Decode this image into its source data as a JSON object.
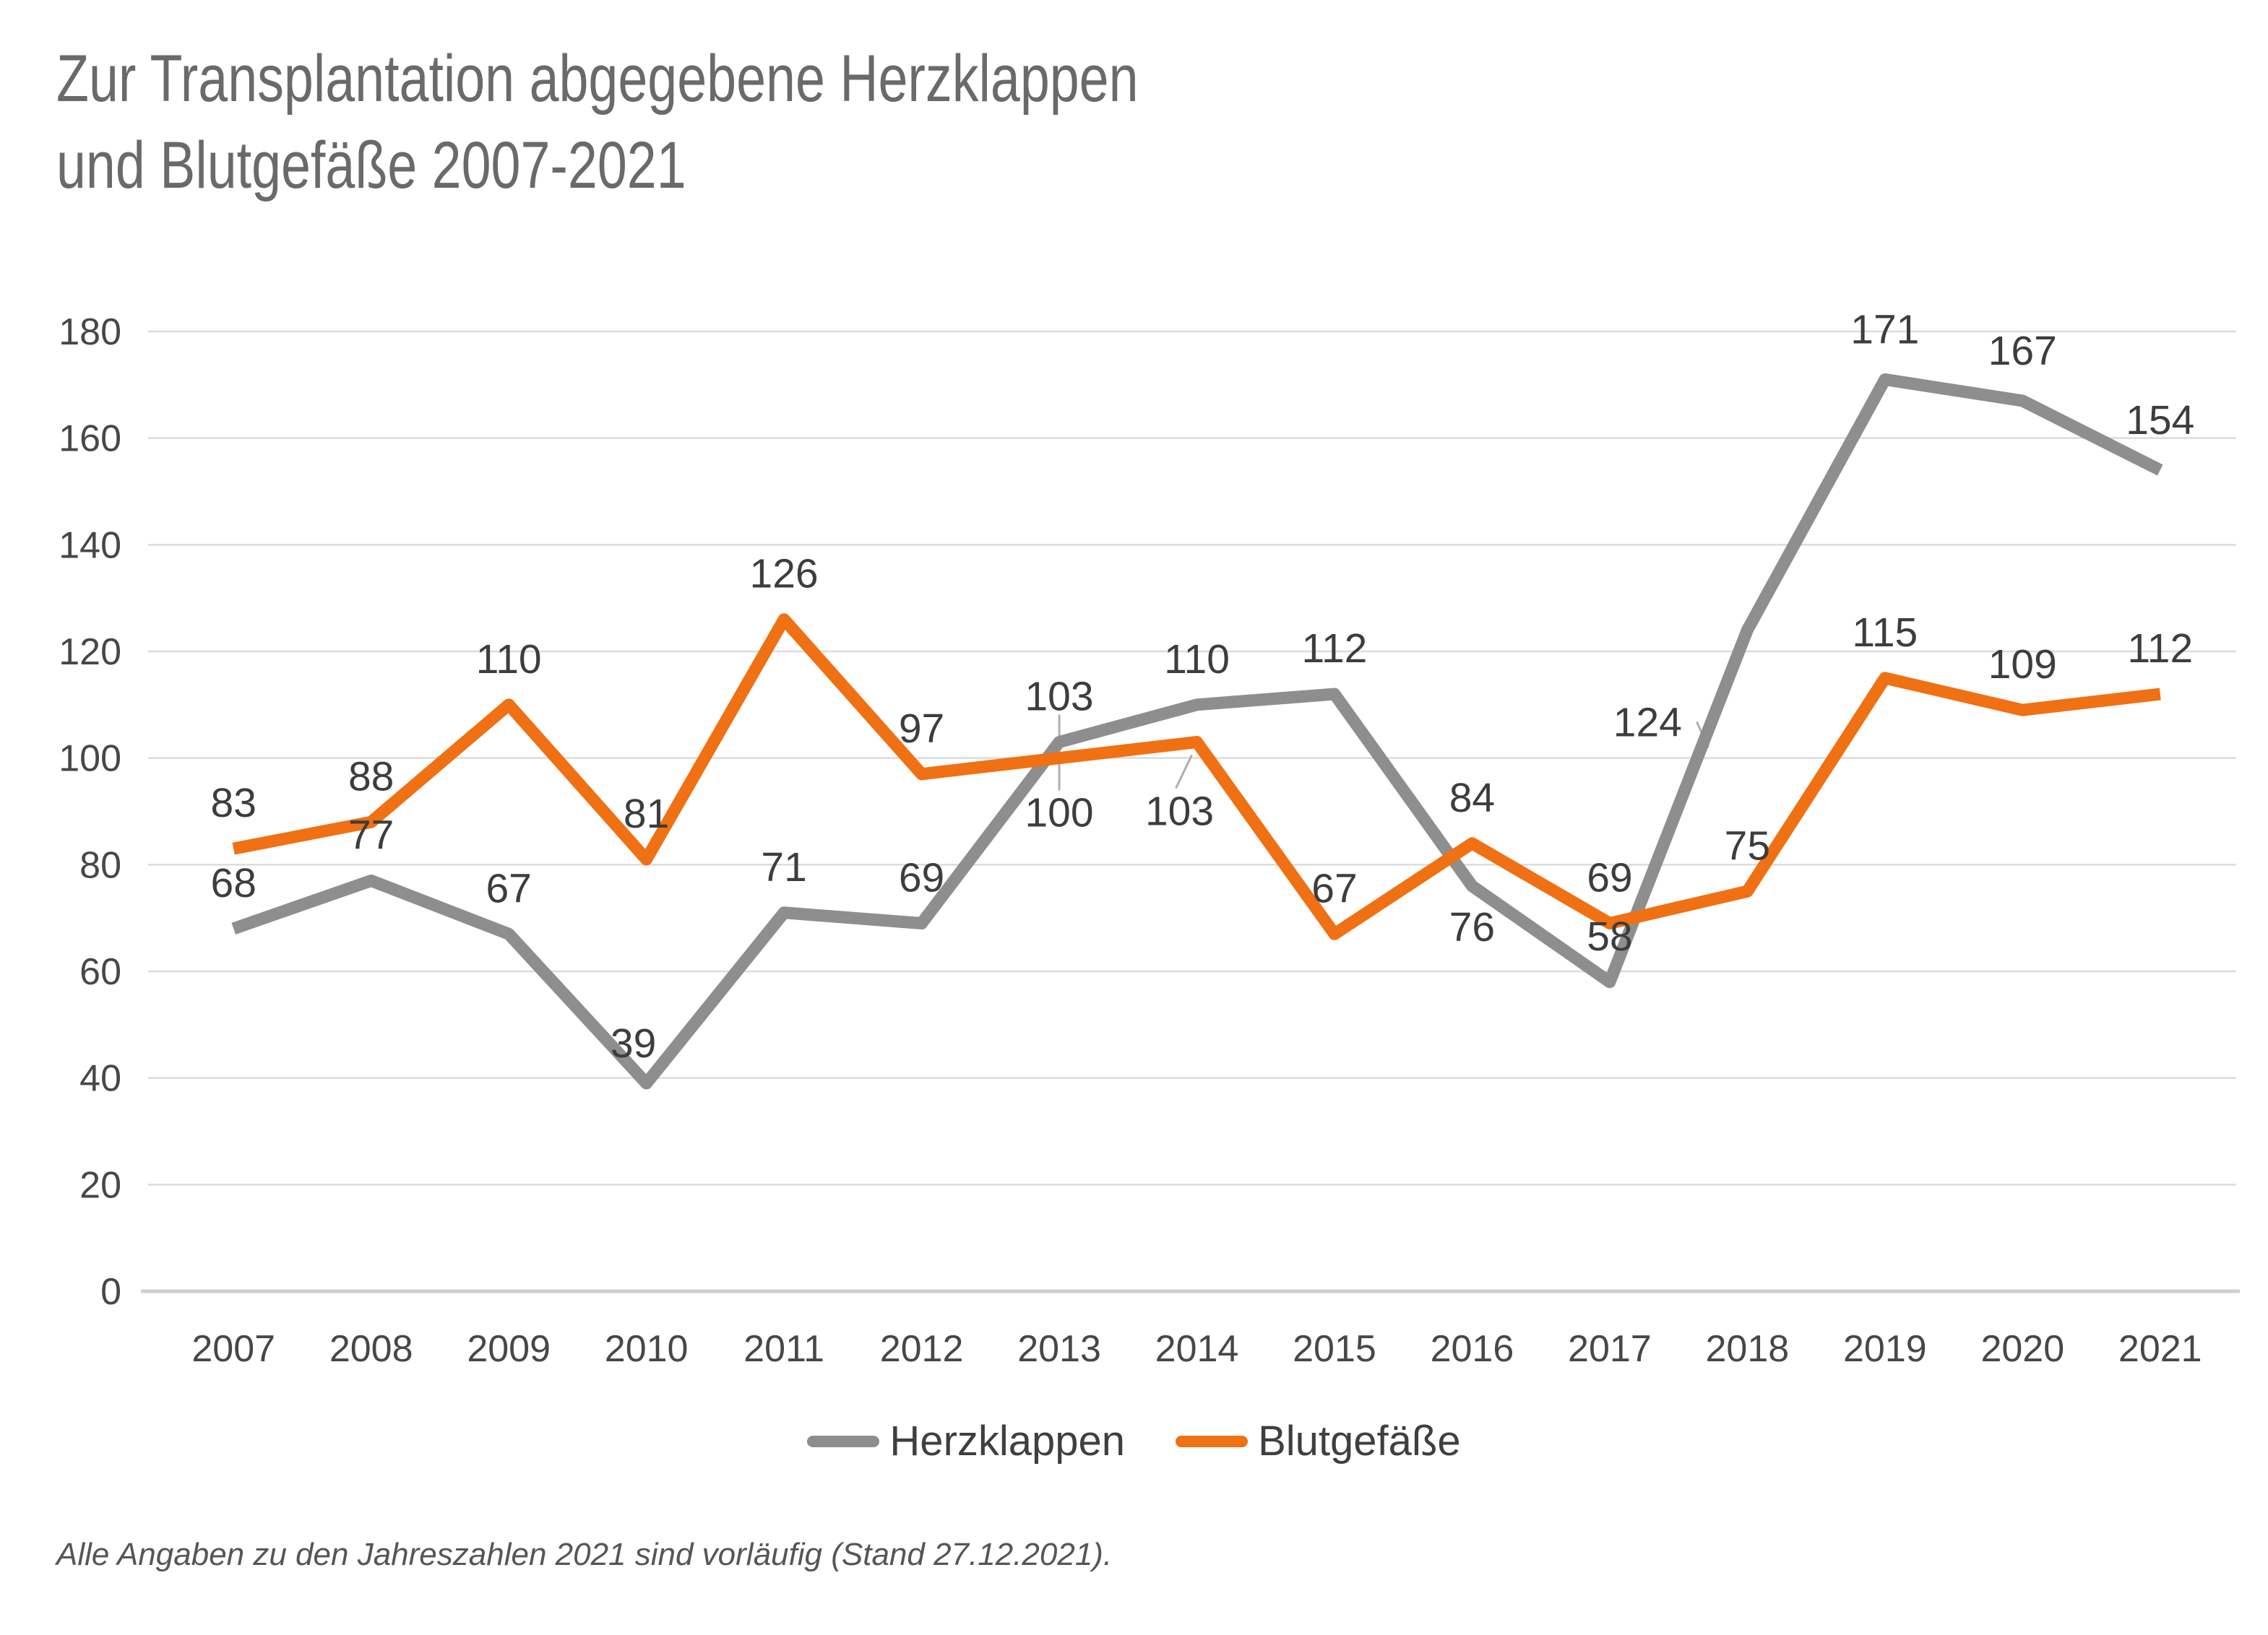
{
  "title": {
    "line1": "Zur Transplantation abgegebene Herzklappen",
    "line2": "und Blutgefäße 2007-2021"
  },
  "footnote": "Alle Angaben zu den Jahreszahlen 2021 sind vorläufig (Stand 27.12.2021).",
  "legend": {
    "items": [
      {
        "label": "Herzklappen",
        "color": "#8E8E8E"
      },
      {
        "label": "Blutgefäße",
        "color": "#F07014"
      }
    ]
  },
  "colors": {
    "grid": "#DCDCDC",
    "axis_line": "#CFCFCF",
    "tick_label": "#474747",
    "data_label": "#3D3D3D",
    "leader_line": "#AFAFAF",
    "title_text": "#6A6A6A"
  },
  "chart_data": {
    "type": "line",
    "title": "Zur Transplantation abgegebene Herzklappen und Blutgefäße 2007-2021",
    "categories": [
      "2007",
      "2008",
      "2009",
      "2010",
      "2011",
      "2012",
      "2013",
      "2014",
      "2015",
      "2016",
      "2017",
      "2018",
      "2019",
      "2020",
      "2021"
    ],
    "series": [
      {
        "name": "Herzklappen",
        "color": "#8E8E8E",
        "values": [
          68,
          77,
          67,
          39,
          71,
          69,
          103,
          110,
          112,
          76,
          58,
          124,
          171,
          167,
          154
        ]
      },
      {
        "name": "Blutgefäße",
        "color": "#F07014",
        "values": [
          83,
          88,
          110,
          81,
          126,
          97,
          100,
          103,
          67,
          84,
          69,
          75,
          115,
          109,
          112
        ]
      }
    ],
    "xlabel": "",
    "ylabel": "",
    "ylim": [
      0,
      180
    ],
    "ytick_step": 20,
    "grid": true,
    "data_labels": true,
    "legend_position": "bottom"
  }
}
